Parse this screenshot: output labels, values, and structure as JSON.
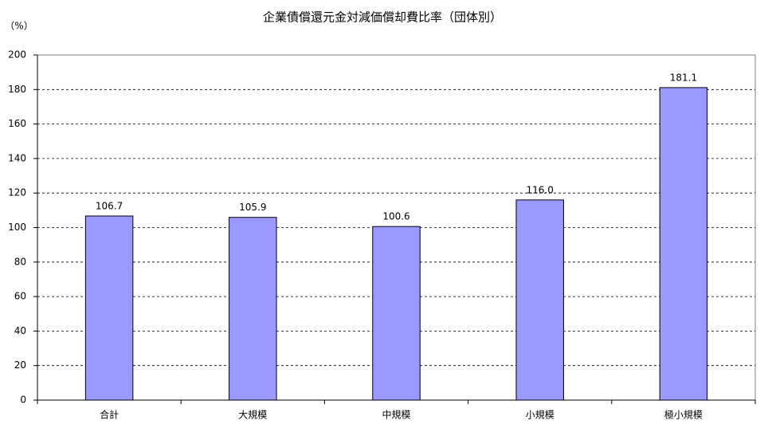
{
  "chart_data": {
    "type": "bar",
    "title": "企業債償還元金対減価償却費比率（団体別）",
    "y_label": "（%）",
    "categories": [
      "合計",
      "大規模",
      "中規模",
      "小規模",
      "極小規模"
    ],
    "values": [
      106.7,
      105.9,
      100.6,
      116.0,
      181.1
    ],
    "value_labels": [
      "106.7",
      "105.9",
      "100.6",
      "116.0",
      "181.1"
    ],
    "color": "#9999ff",
    "ylim": [
      0,
      200
    ],
    "yticks": [
      0,
      20,
      40,
      60,
      80,
      100,
      120,
      140,
      160,
      180,
      200
    ],
    "grid": true
  }
}
